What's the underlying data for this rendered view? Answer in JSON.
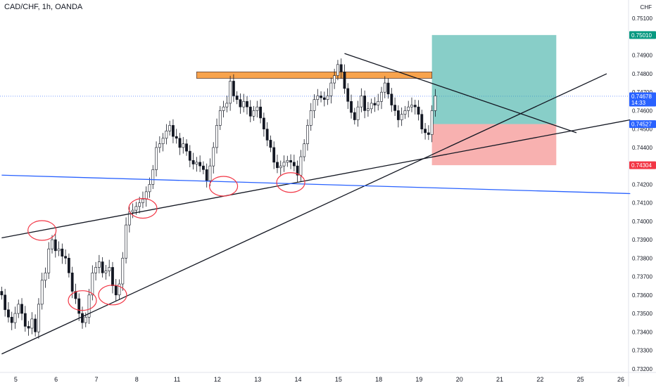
{
  "chart_data": {
    "type": "candlestick",
    "title": "CAD/CHF, 1h, OANDA",
    "y_axis": {
      "unit": "CHF",
      "range": [
        0.7318,
        0.752
      ],
      "tick_labels": [
        "0.75100",
        "0.74900",
        "0.74800",
        "0.74700",
        "0.74600",
        "0.74500",
        "0.74400",
        "0.74200",
        "0.74100",
        "0.74000",
        "0.73900",
        "0.73800",
        "0.73700",
        "0.73600",
        "0.73500",
        "0.73400",
        "0.73300",
        "0.73200"
      ],
      "price_tags": [
        {
          "label": "0.75010",
          "value": 0.7501,
          "color": "#089981"
        },
        {
          "label": "0.74678",
          "value": 0.74678,
          "color": "#2962ff",
          "sub": "14:33"
        },
        {
          "label": "0.74527",
          "value": 0.74527,
          "color": "#2962ff"
        },
        {
          "label": "0.74304",
          "value": 0.74304,
          "color": "#f23645"
        }
      ]
    },
    "x_axis": {
      "tick_labels": [
        "5",
        "6",
        "7",
        "8",
        "11",
        "12",
        "13",
        "14",
        "15",
        "18",
        "19",
        "20",
        "21",
        "22",
        "25",
        "26"
      ],
      "tick_index": [
        0,
        12,
        24,
        36,
        48,
        60,
        72,
        84,
        96,
        108,
        120,
        132,
        144,
        156,
        168,
        180
      ],
      "bars_visible": 187
    },
    "ohlc_hourly_closes": [
      0.736,
      0.7352,
      0.7348,
      0.7345,
      0.735,
      0.7355,
      0.735,
      0.7343,
      0.7342,
      0.7347,
      0.734,
      0.7355,
      0.7368,
      0.7372,
      0.7385,
      0.739,
      0.7384,
      0.7385,
      0.7381,
      0.738,
      0.7372,
      0.7362,
      0.7358,
      0.735,
      0.7345,
      0.7348,
      0.736,
      0.7372,
      0.7375,
      0.7378,
      0.7372,
      0.7373,
      0.7375,
      0.7365,
      0.736,
      0.7366,
      0.738,
      0.7398,
      0.7405,
      0.7406,
      0.7408,
      0.741,
      0.7412,
      0.7416,
      0.742,
      0.7428,
      0.744,
      0.7442,
      0.7445,
      0.7449,
      0.7452,
      0.7446,
      0.7445,
      0.744,
      0.7442,
      0.7438,
      0.7433,
      0.7431,
      0.7432,
      0.743,
      0.7428,
      0.7422,
      0.743,
      0.744,
      0.7452,
      0.746,
      0.7462,
      0.7464,
      0.7476,
      0.7468,
      0.7466,
      0.7462,
      0.7465,
      0.7462,
      0.7457,
      0.746,
      0.7462,
      0.7456,
      0.745,
      0.7444,
      0.744,
      0.7432,
      0.7429,
      0.743,
      0.7432,
      0.7433,
      0.7432,
      0.743,
      0.7425,
      0.7435,
      0.7442,
      0.7452,
      0.746,
      0.7466,
      0.7468,
      0.7467,
      0.7466,
      0.7468,
      0.7475,
      0.7479,
      0.7485,
      0.7481,
      0.7472,
      0.7465,
      0.7459,
      0.7455,
      0.7462,
      0.7468,
      0.746,
      0.7461,
      0.7464,
      0.7463,
      0.7465,
      0.747,
      0.7475,
      0.7469,
      0.7463,
      0.746,
      0.7455,
      0.7458,
      0.746,
      0.7462,
      0.7463,
      0.7462,
      0.7458,
      0.745,
      0.7448,
      0.7447,
      0.746,
      0.7468
    ],
    "series": [],
    "annotations": {
      "resistance_zone": {
        "from_bar": 58,
        "to_bar": 128,
        "low": 0.74775,
        "high": 0.7481,
        "color": "#f57c00"
      },
      "long_position": {
        "entry": 0.74527,
        "target": 0.7501,
        "stop": 0.74304,
        "from_bar": 128,
        "to_bar": 165
      },
      "trend_lines": [
        {
          "name": "lower-channel-line",
          "from": [
            0,
            0.7328
          ],
          "to": [
            180,
            0.748
          ]
        },
        {
          "name": "mid-trend-line",
          "from": [
            0,
            0.7391
          ],
          "to": [
            187,
            0.7455
          ]
        },
        {
          "name": "descending-line",
          "from": [
            102,
            0.7491
          ],
          "to": [
            171,
            0.7448
          ]
        },
        {
          "name": "blue-horizontal-line",
          "from": [
            0,
            0.7425
          ],
          "to": [
            187,
            0.7415
          ],
          "color": "#2962ff"
        }
      ],
      "circles": [
        {
          "bar": 12,
          "price": 0.7395,
          "color": "#f23645"
        },
        {
          "bar": 24,
          "price": 0.7357,
          "color": "#f23645"
        },
        {
          "bar": 33,
          "price": 0.736,
          "color": "#f23645"
        },
        {
          "bar": 42,
          "price": 0.7407,
          "color": "#f23645"
        },
        {
          "bar": 66,
          "price": 0.7419,
          "color": "#f23645"
        },
        {
          "bar": 86,
          "price": 0.7421,
          "color": "#f23645"
        }
      ]
    },
    "colors": {
      "up": "#131722",
      "down": "#131722",
      "background": "#ffffff",
      "grid": "none"
    }
  }
}
